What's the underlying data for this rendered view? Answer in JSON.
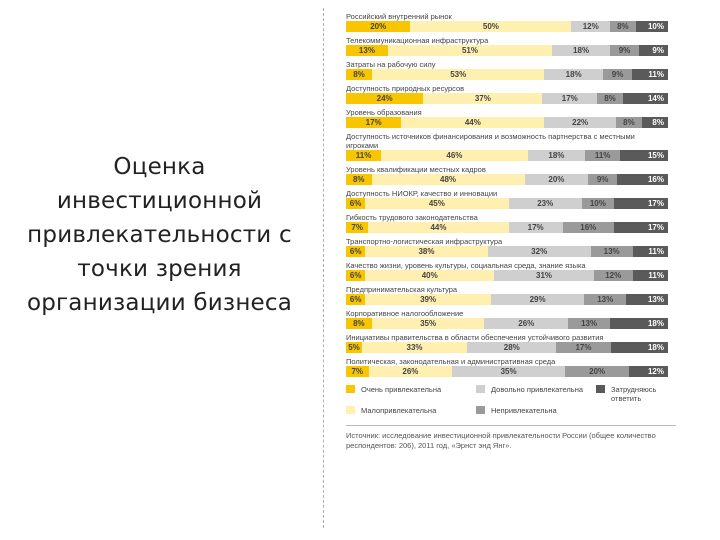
{
  "slide": {
    "title": "Оценка инвестиционной привлекательности с точки зрения организации бизнеса"
  },
  "chart_data": {
    "type": "bar",
    "stacked": true,
    "orientation": "horizontal",
    "categories": [
      "Российский внутренний рынок",
      "Телекоммуникационная инфраструктура",
      "Затраты на рабочую силу",
      "Доступность природных ресурсов",
      "Уровень образования",
      "Доступность источников финансирования и возможность партнерства с местными игроками",
      "Уровень квалификации местных кадров",
      "Доступность НИОКР, качество и инновации",
      "Гибкость трудового законодательства",
      "Транспортно-логистическая инфраструктура",
      "Качество жизни, уровень культуры, социальная среда, знание языка",
      "Предпринимательская культура",
      "Корпоративное налогообложение",
      "Инициативы правительства в области обеспечения устойчивого развития",
      "Политическая, законодательная и административная среда"
    ],
    "series": [
      {
        "name": "Очень привлекательна",
        "color": "#f7c600",
        "values": [
          20,
          13,
          8,
          24,
          17,
          11,
          8,
          6,
          7,
          6,
          6,
          6,
          8,
          5,
          7
        ]
      },
      {
        "name": "Малопривлекательна",
        "color": "#fff0b0",
        "values": [
          50,
          51,
          53,
          37,
          44,
          46,
          48,
          45,
          44,
          38,
          40,
          39,
          35,
          33,
          26
        ]
      },
      {
        "name": "Довольно привлекательна",
        "color": "#cfcfcf",
        "values": [
          12,
          18,
          18,
          17,
          22,
          18,
          20,
          23,
          17,
          32,
          31,
          29,
          26,
          28,
          35
        ]
      },
      {
        "name": "Непривлекательна",
        "color": "#9a9a9a",
        "values": [
          8,
          9,
          9,
          8,
          8,
          11,
          9,
          10,
          16,
          13,
          12,
          13,
          13,
          17,
          20
        ]
      },
      {
        "name": "Затрудняюсь ответить",
        "color": "#5a5a5a",
        "values": [
          10,
          9,
          11,
          14,
          8,
          15,
          16,
          17,
          17,
          11,
          11,
          13,
          18,
          18,
          12
        ]
      }
    ],
    "value_suffix": "%",
    "source": "Источник: исследование инвестиционной привлекательности России (общее количество респондентов: 206), 2011 год, «Эрнст энд Янг»."
  }
}
